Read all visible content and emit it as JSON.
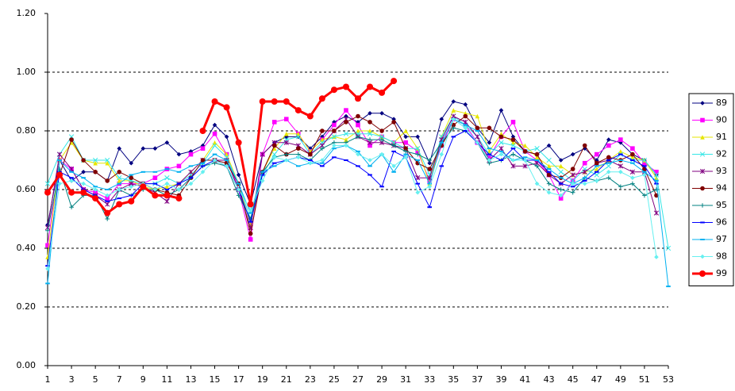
{
  "chart_data": {
    "type": "line",
    "x": [
      1,
      2,
      3,
      4,
      5,
      6,
      7,
      8,
      9,
      10,
      11,
      12,
      13,
      14,
      15,
      16,
      17,
      18,
      19,
      20,
      21,
      22,
      23,
      24,
      25,
      26,
      27,
      28,
      29,
      30,
      31,
      32,
      33,
      34,
      35,
      36,
      37,
      38,
      39,
      40,
      41,
      42,
      43,
      44,
      45,
      46,
      47,
      48,
      49,
      50,
      51,
      52,
      53
    ],
    "xlim": [
      1,
      53
    ],
    "xticks": [
      1,
      3,
      5,
      7,
      9,
      11,
      13,
      15,
      17,
      19,
      21,
      23,
      25,
      27,
      29,
      31,
      33,
      35,
      37,
      39,
      41,
      43,
      45,
      47,
      49,
      51,
      53
    ],
    "ylim": [
      0,
      1.2
    ],
    "yticks": [
      {
        "value": 0,
        "label": "0.00"
      },
      {
        "value": 0.2,
        "label": "0.20"
      },
      {
        "value": 0.4,
        "label": "0.40"
      },
      {
        "value": 0.6,
        "label": "0.60"
      },
      {
        "value": 0.8,
        "label": "0.80"
      },
      {
        "value": 1.0,
        "label": "1.00"
      },
      {
        "value": 1.2,
        "label": "1.20"
      }
    ],
    "grid": true,
    "legend": "right",
    "series": [
      {
        "name": "89",
        "color": "#000080",
        "marker": "diamond",
        "line_width": 1,
        "values": [
          0.48,
          0.7,
          0.63,
          0.66,
          0.66,
          0.63,
          0.74,
          0.69,
          0.74,
          0.74,
          0.76,
          0.72,
          0.73,
          0.75,
          0.82,
          0.78,
          0.65,
          0.55,
          0.72,
          0.76,
          0.78,
          0.78,
          0.74,
          0.78,
          0.83,
          0.85,
          0.83,
          0.86,
          0.86,
          0.84,
          0.78,
          0.78,
          0.69,
          0.84,
          0.9,
          0.89,
          0.81,
          0.76,
          0.87,
          0.78,
          0.73,
          0.72,
          0.75,
          0.7,
          0.72,
          0.74,
          0.7,
          0.77,
          0.76,
          0.72,
          0.7,
          0.65,
          null
        ]
      },
      {
        "name": "90",
        "color": "#ff00ff",
        "marker": "square",
        "line_width": 1,
        "values": [
          0.41,
          0.7,
          0.67,
          0.6,
          0.59,
          0.57,
          0.62,
          0.62,
          0.62,
          0.64,
          0.67,
          0.68,
          0.72,
          0.74,
          0.79,
          0.72,
          0.6,
          0.43,
          0.72,
          0.83,
          0.84,
          0.79,
          0.73,
          0.77,
          0.82,
          0.87,
          0.82,
          0.75,
          0.78,
          0.76,
          0.76,
          0.73,
          0.63,
          0.75,
          0.84,
          0.82,
          0.76,
          0.71,
          0.78,
          0.83,
          0.73,
          0.7,
          0.65,
          0.57,
          0.63,
          0.69,
          0.72,
          0.75,
          0.77,
          0.74,
          0.69,
          0.66,
          null
        ]
      },
      {
        "name": "91",
        "color": "#e6e600",
        "marker": "triangle",
        "line_width": 1,
        "values": [
          0.37,
          0.7,
          0.76,
          0.7,
          0.69,
          0.69,
          0.63,
          0.63,
          0.61,
          0.6,
          0.61,
          0.62,
          0.66,
          0.7,
          0.76,
          0.72,
          0.62,
          0.48,
          0.66,
          0.74,
          0.79,
          0.79,
          0.73,
          0.77,
          0.78,
          0.77,
          0.8,
          0.8,
          0.78,
          0.76,
          0.8,
          0.74,
          0.62,
          0.78,
          0.87,
          0.86,
          0.85,
          0.73,
          0.79,
          0.76,
          0.75,
          0.71,
          0.68,
          0.68,
          0.65,
          0.66,
          0.67,
          0.7,
          0.73,
          0.71,
          0.7,
          0.64,
          null
        ]
      },
      {
        "name": "92",
        "color": "#33e6e6",
        "marker": "cross",
        "line_width": 1,
        "values": [
          0.62,
          0.72,
          0.78,
          0.7,
          0.7,
          0.7,
          0.64,
          0.63,
          0.62,
          0.62,
          0.64,
          0.62,
          0.65,
          0.69,
          0.75,
          0.71,
          0.62,
          0.5,
          0.65,
          0.72,
          0.77,
          0.78,
          0.72,
          0.76,
          0.78,
          0.79,
          0.79,
          0.79,
          0.78,
          0.76,
          0.74,
          0.74,
          0.65,
          0.78,
          0.85,
          0.82,
          0.78,
          0.72,
          0.76,
          0.75,
          0.73,
          0.74,
          0.7,
          0.66,
          0.63,
          0.67,
          0.65,
          0.68,
          0.72,
          0.7,
          0.7,
          0.65,
          0.4
        ]
      },
      {
        "name": "93",
        "color": "#800080",
        "marker": "star",
        "line_width": 1,
        "values": [
          0.47,
          0.72,
          0.67,
          0.6,
          0.58,
          0.55,
          0.6,
          0.62,
          0.61,
          0.59,
          0.56,
          0.62,
          0.66,
          0.7,
          0.7,
          0.7,
          0.6,
          0.47,
          0.72,
          0.76,
          0.76,
          0.75,
          0.72,
          0.75,
          0.8,
          0.84,
          0.78,
          0.76,
          0.76,
          0.75,
          0.74,
          0.64,
          0.64,
          0.77,
          0.85,
          0.83,
          0.78,
          0.7,
          0.74,
          0.68,
          0.68,
          0.69,
          0.65,
          0.62,
          0.65,
          0.66,
          0.69,
          0.7,
          0.68,
          0.66,
          0.66,
          0.52,
          null
        ]
      },
      {
        "name": "94",
        "color": "#800000",
        "marker": "circle",
        "line_width": 1,
        "values": [
          0.59,
          0.65,
          0.77,
          0.7,
          0.66,
          0.63,
          0.66,
          0.64,
          0.62,
          0.6,
          0.59,
          0.58,
          0.64,
          0.7,
          0.7,
          0.69,
          0.62,
          0.45,
          0.66,
          0.75,
          0.72,
          0.74,
          0.72,
          0.8,
          0.8,
          0.83,
          0.85,
          0.83,
          0.8,
          0.83,
          0.74,
          0.69,
          0.67,
          0.75,
          0.82,
          0.85,
          0.81,
          0.81,
          0.78,
          0.77,
          0.73,
          0.72,
          0.65,
          0.64,
          0.67,
          0.75,
          0.69,
          0.71,
          0.7,
          0.72,
          0.67,
          0.58,
          null
        ]
      },
      {
        "name": "95",
        "color": "#008080",
        "marker": "plus",
        "line_width": 1,
        "values": [
          0.46,
          0.67,
          0.54,
          0.58,
          0.58,
          0.5,
          0.6,
          0.58,
          0.6,
          0.6,
          0.58,
          0.6,
          0.64,
          0.68,
          0.69,
          0.68,
          0.58,
          0.5,
          0.66,
          0.71,
          0.72,
          0.72,
          0.7,
          0.74,
          0.76,
          0.76,
          0.78,
          0.77,
          0.77,
          0.75,
          0.73,
          0.72,
          0.7,
          0.76,
          0.81,
          0.8,
          0.76,
          0.69,
          0.7,
          0.72,
          0.7,
          0.68,
          0.62,
          0.6,
          0.59,
          0.64,
          0.63,
          0.64,
          0.61,
          0.62,
          0.58,
          0.6,
          null
        ]
      },
      {
        "name": "96",
        "color": "#0000ff",
        "marker": "dash",
        "line_width": 1,
        "values": [
          0.34,
          0.66,
          0.64,
          0.6,
          0.58,
          0.56,
          0.57,
          0.58,
          0.62,
          0.62,
          0.6,
          0.62,
          0.64,
          0.68,
          0.7,
          0.68,
          0.6,
          0.49,
          0.65,
          0.69,
          0.7,
          0.71,
          0.7,
          0.68,
          0.71,
          0.7,
          0.68,
          0.65,
          0.61,
          0.73,
          0.71,
          0.62,
          0.54,
          0.68,
          0.78,
          0.8,
          0.76,
          0.72,
          0.7,
          0.74,
          0.7,
          0.7,
          0.66,
          0.62,
          0.61,
          0.63,
          0.66,
          0.7,
          0.72,
          0.7,
          0.68,
          0.62,
          null
        ]
      },
      {
        "name": "97",
        "color": "#00b0f0",
        "marker": "dash",
        "line_width": 1,
        "values": [
          0.28,
          0.7,
          0.66,
          0.64,
          0.61,
          0.6,
          0.62,
          0.65,
          0.66,
          0.66,
          0.67,
          0.66,
          0.68,
          0.69,
          0.72,
          0.7,
          0.62,
          0.52,
          0.66,
          0.68,
          0.7,
          0.68,
          0.69,
          0.69,
          0.74,
          0.75,
          0.73,
          0.68,
          0.72,
          0.66,
          0.72,
          0.7,
          0.62,
          0.76,
          0.84,
          0.82,
          0.8,
          0.74,
          0.73,
          0.7,
          0.71,
          0.7,
          0.67,
          0.64,
          0.62,
          0.64,
          0.68,
          0.69,
          0.7,
          0.69,
          0.66,
          0.63,
          0.27
        ]
      },
      {
        "name": "98",
        "color": "#66f0f0",
        "marker": "diamond",
        "line_width": 1,
        "values": [
          0.33,
          0.62,
          0.63,
          0.62,
          0.6,
          0.58,
          0.6,
          0.61,
          0.62,
          0.6,
          0.62,
          0.6,
          0.62,
          0.66,
          0.7,
          0.68,
          0.6,
          0.53,
          0.63,
          0.71,
          0.7,
          0.71,
          0.69,
          0.7,
          0.75,
          0.75,
          0.72,
          0.7,
          0.72,
          0.68,
          0.71,
          0.59,
          0.61,
          0.72,
          0.84,
          0.81,
          0.76,
          0.7,
          0.72,
          0.7,
          0.7,
          0.62,
          0.59,
          0.58,
          0.62,
          0.62,
          0.63,
          0.66,
          0.66,
          0.64,
          0.65,
          0.37,
          null
        ]
      },
      {
        "name": "99",
        "color": "#ff0000",
        "marker": "circle",
        "line_width": 3,
        "values": [
          0.59,
          0.65,
          0.59,
          0.59,
          0.57,
          0.52,
          0.55,
          0.56,
          0.61,
          0.58,
          0.58,
          0.57,
          null,
          0.8,
          0.9,
          0.88,
          0.76,
          0.55,
          0.9,
          0.9,
          0.9,
          0.87,
          0.85,
          0.91,
          0.94,
          0.95,
          0.91,
          0.95,
          0.93,
          0.97,
          null,
          null,
          null,
          null,
          null,
          null,
          null,
          null,
          null,
          null,
          null,
          null,
          null,
          null,
          null,
          null,
          null,
          null,
          null,
          null,
          null,
          null,
          null
        ]
      }
    ]
  }
}
